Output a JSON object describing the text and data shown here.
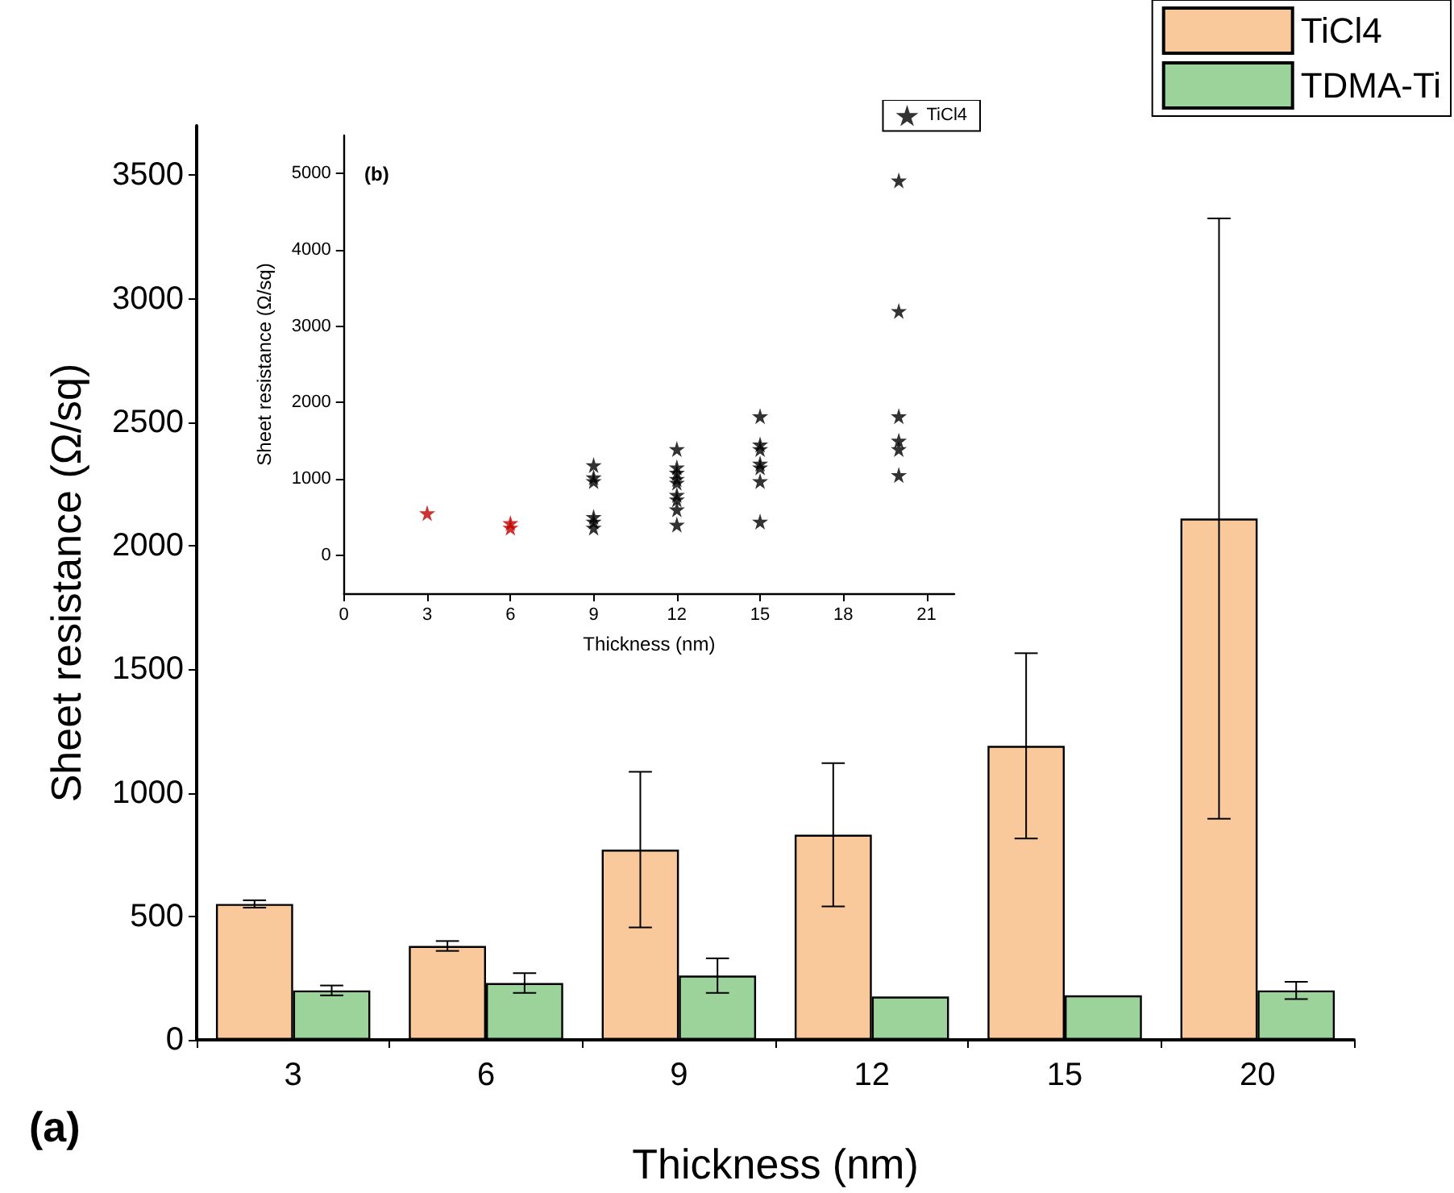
{
  "chart_data": [
    {
      "type": "bar",
      "xlabel": "Thickness (nm)",
      "ylabel": "Sheet resistance (Ω/sq)",
      "annotations": [
        "(a)"
      ],
      "categories": [
        "3",
        "6",
        "9",
        "12",
        "15",
        "20"
      ],
      "series": [
        {
          "name": "TiCl4",
          "color": "#f9c89b",
          "values": [
            550,
            380,
            770,
            830,
            1190,
            2110
          ],
          "errors": [
            15,
            20,
            315,
            290,
            375,
            1215
          ]
        },
        {
          "name": "TDMA-Ti",
          "color": "#9bd39b",
          "values": [
            200,
            230,
            260,
            175,
            180,
            200
          ],
          "errors": [
            20,
            40,
            70,
            null,
            null,
            35
          ]
        }
      ],
      "ylim": [
        0,
        3700
      ],
      "yticks": [
        0,
        500,
        1000,
        1500,
        2000,
        2500,
        3000,
        3500
      ],
      "grid": false,
      "legend": "top right"
    },
    {
      "type": "scatter",
      "xlabel": "Thickness (nm)",
      "ylabel": "Sheet resistance (Ω/sq)",
      "annotations": [
        "(b)"
      ],
      "marker": "star",
      "legend": "top right",
      "grid": false,
      "series": [
        {
          "name": "TiCl4",
          "color": "#000000",
          "x": [
            3,
            6,
            6,
            9,
            9,
            9,
            9,
            9,
            9,
            12,
            12,
            12,
            12,
            12,
            12,
            12,
            12,
            12,
            15,
            15,
            15,
            15,
            15,
            15,
            15,
            20,
            20,
            20,
            20,
            20,
            20
          ],
          "values": [
            550,
            420,
            360,
            1180,
            1020,
            970,
            500,
            440,
            360,
            1390,
            1150,
            1080,
            1000,
            950,
            790,
            730,
            600,
            400,
            1820,
            1450,
            1390,
            1200,
            1150,
            970,
            440,
            4910,
            3200,
            1820,
            1500,
            1390,
            1050
          ],
          "colors": [
            "#c00000",
            "#c00000",
            "#c00000",
            "#000000",
            "#000000",
            "#000000",
            "#000000",
            "#000000",
            "#000000",
            "#000000",
            "#000000",
            "#000000",
            "#000000",
            "#000000",
            "#000000",
            "#000000",
            "#000000",
            "#000000",
            "#000000",
            "#000000",
            "#000000",
            "#000000",
            "#000000",
            "#000000",
            "#000000",
            "#000000",
            "#000000",
            "#000000",
            "#000000",
            "#000000",
            "#000000"
          ]
        }
      ],
      "xlim": [
        0,
        22
      ],
      "xticks": [
        0,
        3,
        6,
        9,
        12,
        15,
        18,
        21
      ],
      "ylim": [
        -500,
        5500
      ],
      "yticks": [
        0,
        1000,
        2000,
        3000,
        4000,
        5000
      ]
    }
  ]
}
